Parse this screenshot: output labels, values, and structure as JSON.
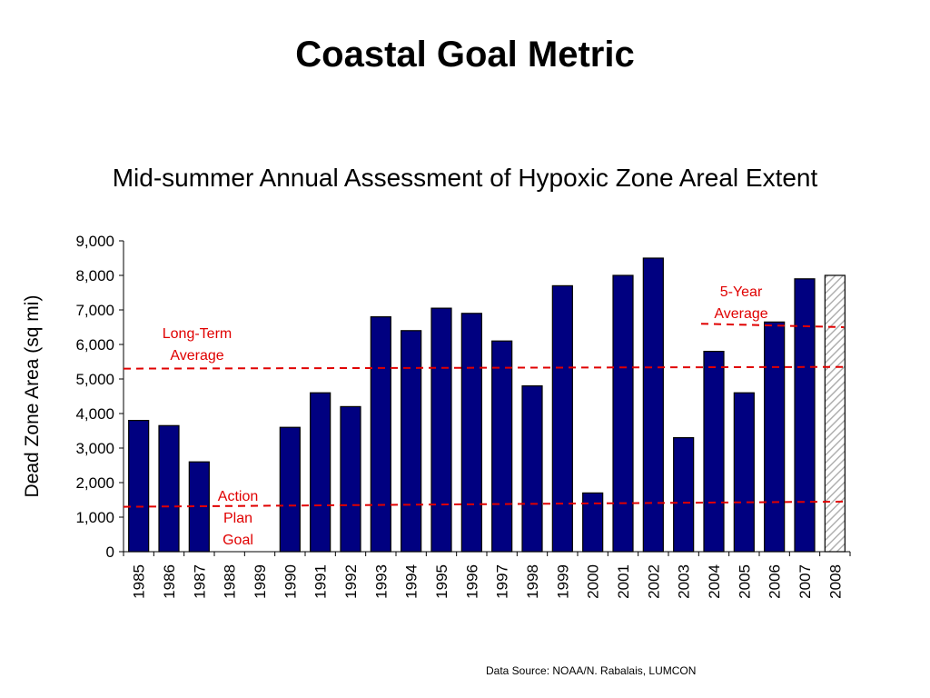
{
  "slide": {
    "title": "Coastal Goal Metric",
    "source": "Data Source: NOAA/N. Rabalais, LUMCON"
  },
  "chart_data": {
    "type": "bar",
    "title": "Mid-summer Annual Assessment of Hypoxic Zone Areal Extent",
    "xlabel": "",
    "ylabel": "Dead Zone Area (sq mi)",
    "ylim": [
      0,
      9000
    ],
    "yticks": [
      "0",
      "1,000",
      "2,000",
      "3,000",
      "4,000",
      "5,000",
      "6,000",
      "7,000",
      "8,000",
      "9,000"
    ],
    "categories": [
      "1985",
      "1986",
      "1987",
      "1988",
      "1989",
      "1990",
      "1991",
      "1992",
      "1993",
      "1994",
      "1995",
      "1996",
      "1997",
      "1998",
      "1999",
      "2000",
      "2001",
      "2002",
      "2003",
      "2004",
      "2005",
      "2006",
      "2007",
      "2008"
    ],
    "values": [
      3800,
      3650,
      2600,
      null,
      null,
      3600,
      4600,
      4200,
      6800,
      6400,
      7050,
      6900,
      6100,
      4800,
      7700,
      1700,
      8000,
      8500,
      3300,
      5800,
      4600,
      6650,
      7900,
      8000
    ],
    "highlight": {
      "category": "2008",
      "style": "hatched"
    },
    "colors": {
      "bar": "#000080",
      "bar_outline": "#000000",
      "hatch": "#b0b0b0",
      "reference": "#e00000"
    },
    "grid": false,
    "reference_lines": [
      {
        "label": "Long-Term Average",
        "from": "1985",
        "to": "2008",
        "value_start": 5300,
        "value_end": 5350
      },
      {
        "label": "5-Year Average",
        "from": "2004",
        "to": "2008",
        "value_start": 6600,
        "value_end": 6500
      },
      {
        "label": "Action Plan Goal",
        "from": "1985",
        "to": "2008",
        "value_start": 1300,
        "value_end": 1450
      }
    ]
  }
}
